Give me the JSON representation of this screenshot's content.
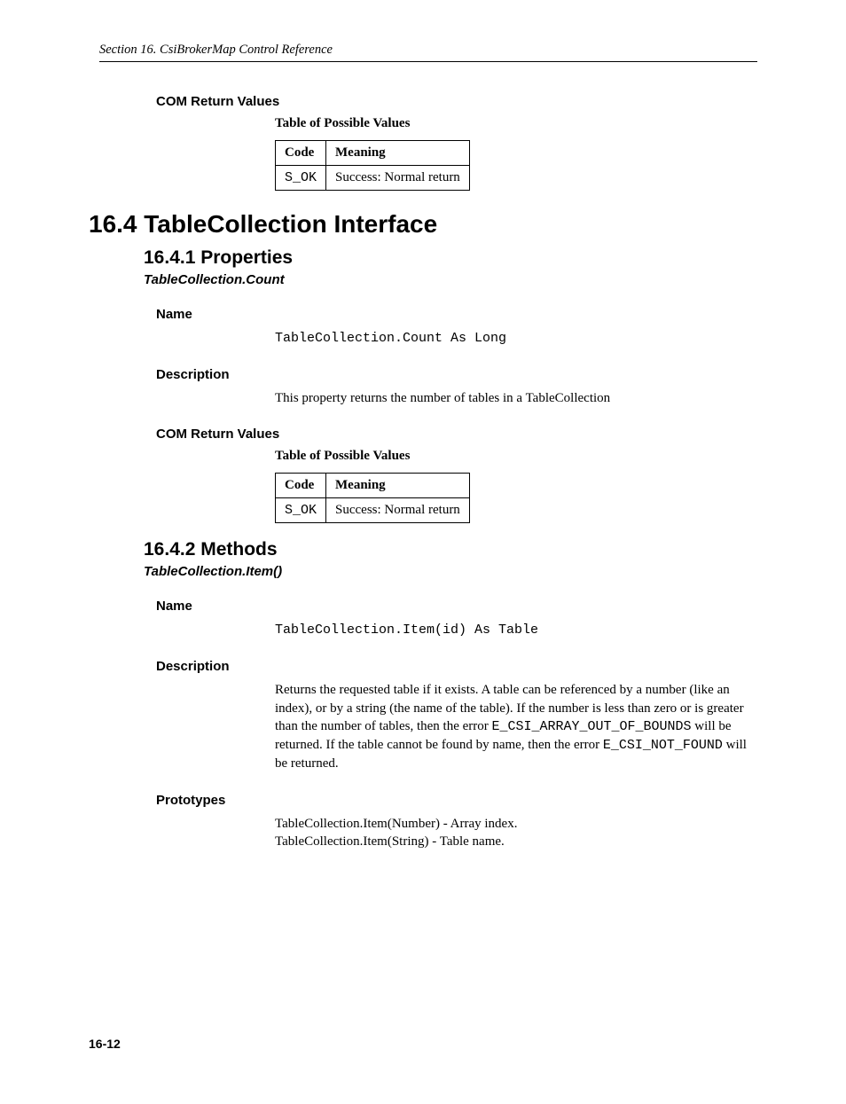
{
  "header": {
    "running": "Section 16.  CsiBrokerMap Control Reference"
  },
  "section_pre": {
    "com_return_label": "COM Return Values",
    "table_caption": "Table of Possible Values",
    "table": {
      "columns": [
        "Code",
        "Meaning"
      ],
      "rows": [
        {
          "code": "S_OK",
          "meaning": "Success: Normal return"
        }
      ]
    }
  },
  "h1": "16.4  TableCollection Interface",
  "properties": {
    "heading": "16.4.1  Properties",
    "item_heading": "TableCollection.Count",
    "name_label": "Name",
    "name_value": "TableCollection.Count As Long",
    "desc_label": "Description",
    "desc_value": "This property returns the number of tables in a TableCollection",
    "com_return_label": "COM Return Values",
    "table_caption": "Table of Possible Values",
    "table": {
      "columns": [
        "Code",
        "Meaning"
      ],
      "rows": [
        {
          "code": "S_OK",
          "meaning": "Success: Normal return"
        }
      ]
    }
  },
  "methods": {
    "heading": "16.4.2  Methods",
    "item_heading": "TableCollection.Item()",
    "name_label": "Name",
    "name_value": "TableCollection.Item(id) As Table",
    "desc_label": "Description",
    "desc_pre1": "Returns the requested table if it exists.  A table can be referenced by a number (like an index), or by a string (the name of the table).  If the number is less than zero or is greater than the number of tables, then the error ",
    "desc_code1": "E_CSI_ARRAY_OUT_OF_BOUNDS",
    "desc_mid": " will be returned.  If the table cannot be found by name, then the error ",
    "desc_code2": "E_CSI_NOT_FOUND",
    "desc_post": " will be returned.",
    "proto_label": "Prototypes",
    "proto_line1": "TableCollection.Item(Number) - Array index.",
    "proto_line2": "TableCollection.Item(String) - Table name."
  },
  "page_number": "16-12"
}
